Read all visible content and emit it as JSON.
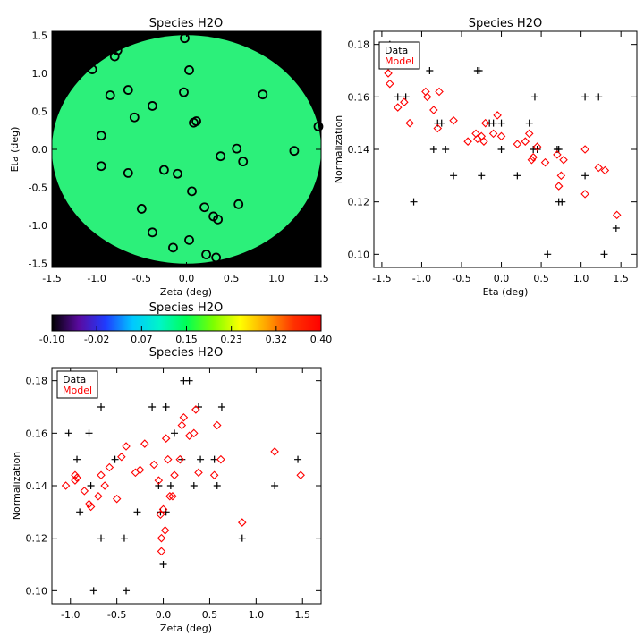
{
  "chart_data": [
    {
      "type": "scatter",
      "panel": "map",
      "title": "Species H2O",
      "xlabel": "Zeta (deg)",
      "ylabel": "Eta (deg)",
      "xlim": [
        -1.5,
        1.5
      ],
      "ylim": [
        -1.55,
        1.55
      ],
      "xticks": [
        "-1.5",
        "-1.0",
        "-0.5",
        "0.0",
        "0.5",
        "1.0",
        "1.5"
      ],
      "yticks": [
        "-1.5",
        "-1.0",
        "-0.5",
        "0.0",
        "0.5",
        "1.0",
        "1.5"
      ],
      "background": "#000000",
      "disk_color": "#2cf07a",
      "disk_radius_deg": 1.5,
      "marker": "circle",
      "points": [
        [
          -0.02,
          1.46
        ],
        [
          -0.77,
          1.3
        ],
        [
          -0.8,
          1.22
        ],
        [
          -1.05,
          1.05
        ],
        [
          0.03,
          1.04
        ],
        [
          -0.65,
          0.78
        ],
        [
          -0.85,
          0.71
        ],
        [
          -0.03,
          0.75
        ],
        [
          0.85,
          0.72
        ],
        [
          -0.38,
          0.57
        ],
        [
          -0.58,
          0.42
        ],
        [
          0.08,
          0.35
        ],
        [
          0.11,
          0.37
        ],
        [
          -0.95,
          0.18
        ],
        [
          1.47,
          0.3
        ],
        [
          0.56,
          0.01
        ],
        [
          1.2,
          -0.02
        ],
        [
          0.38,
          -0.09
        ],
        [
          0.63,
          -0.16
        ],
        [
          -0.95,
          -0.22
        ],
        [
          -0.25,
          -0.27
        ],
        [
          -0.65,
          -0.31
        ],
        [
          -0.1,
          -0.32
        ],
        [
          0.06,
          -0.55
        ],
        [
          0.58,
          -0.72
        ],
        [
          0.2,
          -0.76
        ],
        [
          -0.5,
          -0.78
        ],
        [
          0.3,
          -0.88
        ],
        [
          0.35,
          -0.92
        ],
        [
          -0.38,
          -1.09
        ],
        [
          0.03,
          -1.19
        ],
        [
          -0.15,
          -1.29
        ],
        [
          0.22,
          -1.38
        ],
        [
          0.33,
          -1.42
        ]
      ]
    },
    {
      "type": "scatter",
      "panel": "eta",
      "title": "Species H2O",
      "xlabel": "Eta (deg)",
      "ylabel": "Normalization",
      "xlim": [
        -1.6,
        1.7
      ],
      "ylim": [
        0.095,
        0.185
      ],
      "xticks": [
        "-1.5",
        "-1.0",
        "-0.5",
        "0.0",
        "0.5",
        "1.0",
        "1.5"
      ],
      "yticks": [
        "0.10",
        "0.12",
        "0.14",
        "0.16",
        "0.18"
      ],
      "legend": {
        "position": "top-left",
        "entries": [
          {
            "name": "Data",
            "color": "#000000"
          },
          {
            "name": "Model",
            "color": "#ff0000"
          }
        ]
      },
      "series": [
        {
          "name": "Data",
          "marker": "plus",
          "color": "#000000",
          "points": [
            [
              -1.4,
              0.18
            ],
            [
              -1.3,
              0.16
            ],
            [
              -1.2,
              0.16
            ],
            [
              -1.1,
              0.12
            ],
            [
              -0.9,
              0.17
            ],
            [
              -0.85,
              0.14
            ],
            [
              -0.8,
              0.15
            ],
            [
              -0.75,
              0.15
            ],
            [
              -0.7,
              0.14
            ],
            [
              -0.6,
              0.13
            ],
            [
              -0.3,
              0.17
            ],
            [
              -0.28,
              0.17
            ],
            [
              -0.25,
              0.13
            ],
            [
              -0.15,
              0.15
            ],
            [
              -0.1,
              0.15
            ],
            [
              0.0,
              0.14
            ],
            [
              0.0,
              0.15
            ],
            [
              0.2,
              0.13
            ],
            [
              0.35,
              0.15
            ],
            [
              0.4,
              0.14
            ],
            [
              0.42,
              0.16
            ],
            [
              0.45,
              0.14
            ],
            [
              0.58,
              0.1
            ],
            [
              0.7,
              0.14
            ],
            [
              0.72,
              0.14
            ],
            [
              0.72,
              0.12
            ],
            [
              0.76,
              0.12
            ],
            [
              1.05,
              0.13
            ],
            [
              1.05,
              0.16
            ],
            [
              1.22,
              0.16
            ],
            [
              1.29,
              0.1
            ],
            [
              1.44,
              0.11
            ]
          ]
        },
        {
          "name": "Model",
          "marker": "diamond",
          "color": "#ff0000",
          "points": [
            [
              -1.42,
              0.169
            ],
            [
              -1.4,
              0.165
            ],
            [
              -1.3,
              0.156
            ],
            [
              -1.22,
              0.158
            ],
            [
              -1.15,
              0.15
            ],
            [
              -0.95,
              0.162
            ],
            [
              -0.93,
              0.16
            ],
            [
              -0.85,
              0.155
            ],
            [
              -0.8,
              0.148
            ],
            [
              -0.78,
              0.162
            ],
            [
              -0.6,
              0.151
            ],
            [
              -0.42,
              0.143
            ],
            [
              -0.32,
              0.146
            ],
            [
              -0.3,
              0.144
            ],
            [
              -0.25,
              0.145
            ],
            [
              -0.22,
              0.143
            ],
            [
              -0.2,
              0.15
            ],
            [
              -0.1,
              0.146
            ],
            [
              -0.05,
              0.153
            ],
            [
              0.0,
              0.145
            ],
            [
              0.2,
              0.142
            ],
            [
              0.3,
              0.143
            ],
            [
              0.35,
              0.146
            ],
            [
              0.38,
              0.136
            ],
            [
              0.4,
              0.137
            ],
            [
              0.45,
              0.141
            ],
            [
              0.55,
              0.135
            ],
            [
              0.7,
              0.138
            ],
            [
              0.72,
              0.126
            ],
            [
              0.75,
              0.13
            ],
            [
              0.78,
              0.136
            ],
            [
              1.05,
              0.14
            ],
            [
              1.05,
              0.123
            ],
            [
              1.22,
              0.133
            ],
            [
              1.3,
              0.132
            ],
            [
              1.45,
              0.115
            ]
          ]
        }
      ]
    },
    {
      "type": "colorbar",
      "panel": "colorbar",
      "title": "Species H2O",
      "ticks": [
        "-0.10",
        "-0.02",
        "0.07",
        "0.15",
        "0.23",
        "0.32",
        "0.40"
      ],
      "range": [
        -0.1,
        0.4
      ],
      "colormap": [
        "#000000",
        "#5a0aa0",
        "#1f3cff",
        "#00c8ff",
        "#00f5c8",
        "#00ff55",
        "#7dff00",
        "#ffff00",
        "#ffa000",
        "#ff3000",
        "#ff0000"
      ]
    },
    {
      "type": "scatter",
      "panel": "zeta",
      "title": "Species H2O",
      "xlabel": "Zeta (deg)",
      "ylabel": "Normalization",
      "xlim": [
        -1.2,
        1.7
      ],
      "ylim": [
        0.095,
        0.185
      ],
      "xticks": [
        "-1.0",
        "-0.5",
        "0.0",
        "0.5",
        "1.0",
        "1.5"
      ],
      "yticks": [
        "0.10",
        "0.12",
        "0.14",
        "0.16",
        "0.18"
      ],
      "legend": {
        "position": "top-left",
        "entries": [
          {
            "name": "Data",
            "color": "#000000"
          },
          {
            "name": "Model",
            "color": "#ff0000"
          }
        ]
      },
      "series": [
        {
          "name": "Data",
          "marker": "plus",
          "color": "#000000",
          "points": [
            [
              -1.02,
              0.16
            ],
            [
              -0.93,
              0.15
            ],
            [
              -0.9,
              0.13
            ],
            [
              -0.8,
              0.16
            ],
            [
              -0.78,
              0.14
            ],
            [
              -0.75,
              0.1
            ],
            [
              -0.67,
              0.17
            ],
            [
              -0.67,
              0.12
            ],
            [
              -0.52,
              0.15
            ],
            [
              -0.42,
              0.12
            ],
            [
              -0.4,
              0.1
            ],
            [
              -0.28,
              0.13
            ],
            [
              -0.12,
              0.17
            ],
            [
              -0.05,
              0.14
            ],
            [
              -0.03,
              0.13
            ],
            [
              0.0,
              0.11
            ],
            [
              0.03,
              0.13
            ],
            [
              0.03,
              0.17
            ],
            [
              0.08,
              0.14
            ],
            [
              0.12,
              0.16
            ],
            [
              0.2,
              0.15
            ],
            [
              0.22,
              0.18
            ],
            [
              0.28,
              0.18
            ],
            [
              0.33,
              0.14
            ],
            [
              0.38,
              0.17
            ],
            [
              0.4,
              0.15
            ],
            [
              0.55,
              0.15
            ],
            [
              0.58,
              0.14
            ],
            [
              0.63,
              0.17
            ],
            [
              0.85,
              0.12
            ],
            [
              1.2,
              0.14
            ],
            [
              1.45,
              0.15
            ]
          ]
        },
        {
          "name": "Model",
          "marker": "diamond",
          "color": "#ff0000",
          "points": [
            [
              -1.05,
              0.14
            ],
            [
              -0.95,
              0.142
            ],
            [
              -0.95,
              0.144
            ],
            [
              -0.93,
              0.143
            ],
            [
              -0.85,
              0.138
            ],
            [
              -0.8,
              0.133
            ],
            [
              -0.78,
              0.132
            ],
            [
              -0.7,
              0.136
            ],
            [
              -0.67,
              0.144
            ],
            [
              -0.63,
              0.14
            ],
            [
              -0.58,
              0.147
            ],
            [
              -0.5,
              0.135
            ],
            [
              -0.45,
              0.151
            ],
            [
              -0.4,
              0.155
            ],
            [
              -0.3,
              0.145
            ],
            [
              -0.25,
              0.146
            ],
            [
              -0.2,
              0.156
            ],
            [
              -0.1,
              0.148
            ],
            [
              -0.05,
              0.142
            ],
            [
              -0.03,
              0.129
            ],
            [
              -0.02,
              0.12
            ],
            [
              -0.02,
              0.115
            ],
            [
              0.0,
              0.131
            ],
            [
              0.02,
              0.123
            ],
            [
              0.03,
              0.158
            ],
            [
              0.05,
              0.15
            ],
            [
              0.07,
              0.136
            ],
            [
              0.1,
              0.136
            ],
            [
              0.12,
              0.144
            ],
            [
              0.18,
              0.15
            ],
            [
              0.2,
              0.163
            ],
            [
              0.22,
              0.166
            ],
            [
              0.28,
              0.159
            ],
            [
              0.33,
              0.16
            ],
            [
              0.35,
              0.169
            ],
            [
              0.38,
              0.145
            ],
            [
              0.55,
              0.144
            ],
            [
              0.58,
              0.163
            ],
            [
              0.62,
              0.15
            ],
            [
              0.85,
              0.126
            ],
            [
              1.2,
              0.153
            ],
            [
              1.48,
              0.144
            ]
          ]
        }
      ]
    }
  ]
}
